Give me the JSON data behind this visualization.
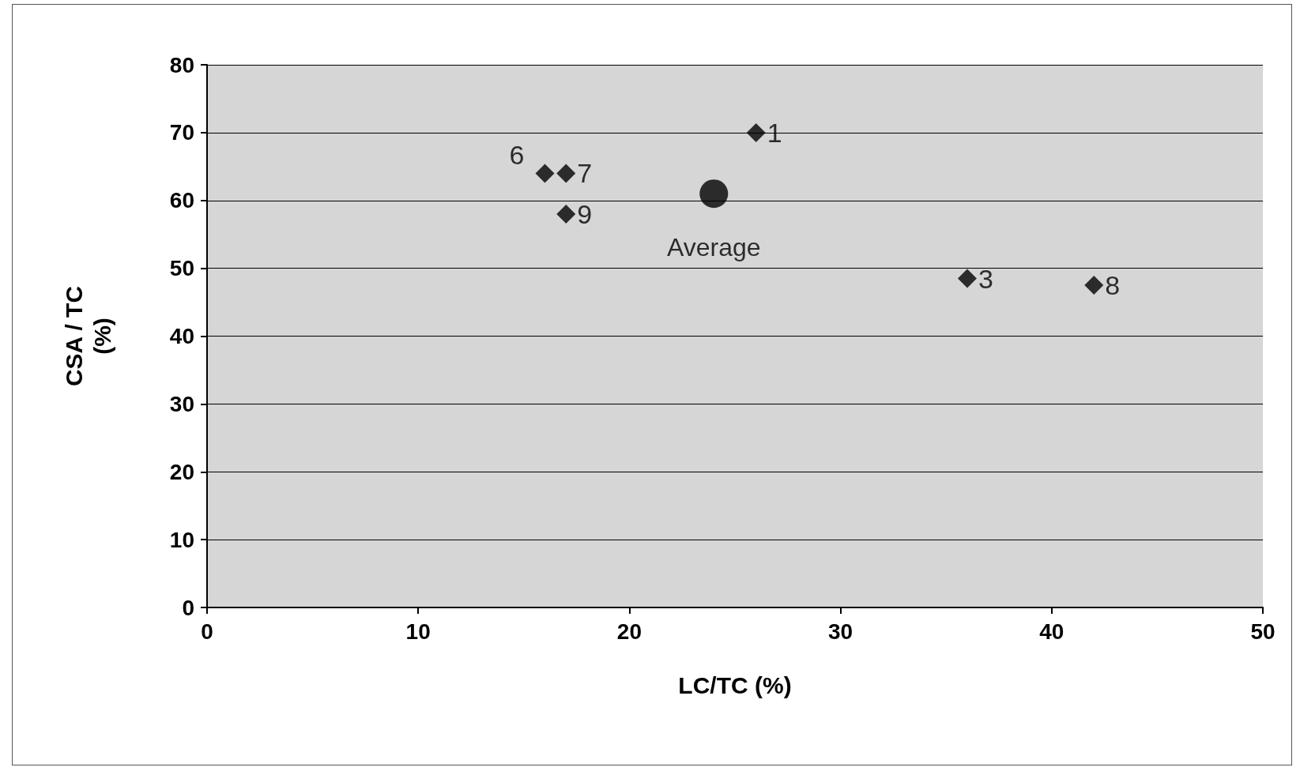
{
  "chart_data": {
    "type": "scatter",
    "xlabel": "LC/TC (%)",
    "ylabel": "CSA / TC\n(%)",
    "xlim": [
      0,
      50
    ],
    "xticks": [
      0,
      10,
      20,
      30,
      40,
      50
    ],
    "ylim": [
      0,
      80
    ],
    "yticks": [
      0,
      10,
      20,
      30,
      40,
      50,
      60,
      70,
      80
    ],
    "grid": "y",
    "series": [
      {
        "color": "#000000",
        "marker": "diamond",
        "x": [
          26,
          16,
          17,
          17,
          36,
          42
        ],
        "values": [
          70,
          64,
          64,
          58,
          48.5,
          47.5
        ]
      },
      {
        "name": "Average",
        "color": "#000000",
        "marker": "circle",
        "x": [
          24
        ],
        "values": [
          61
        ]
      }
    ],
    "annotations": [
      {
        "text": "1",
        "x": 26,
        "y": 70
      },
      {
        "text": "6",
        "x": 16,
        "y": 64
      },
      {
        "text": "7",
        "x": 17,
        "y": 64
      },
      {
        "text": "9",
        "x": 17,
        "y": 58
      },
      {
        "text": "3",
        "x": 36,
        "y": 48.5
      },
      {
        "text": "8",
        "x": 42,
        "y": 47.5
      }
    ]
  }
}
